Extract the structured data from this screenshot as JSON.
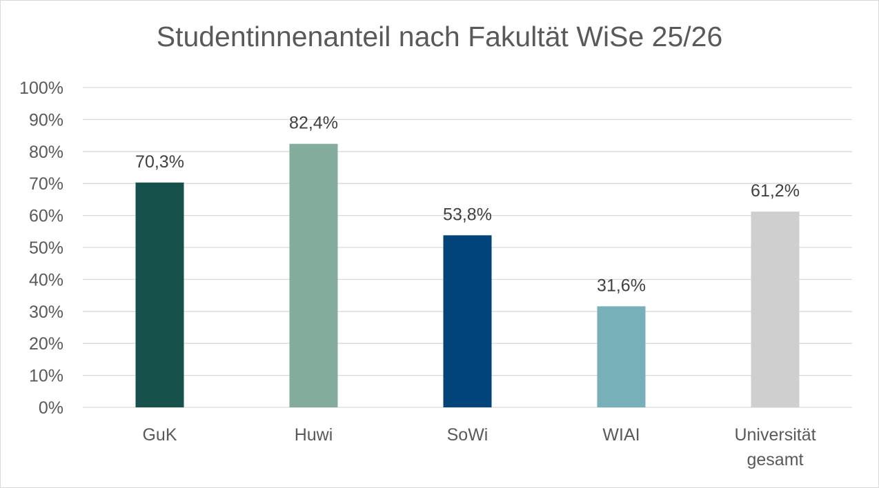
{
  "chart_data": {
    "type": "bar",
    "title": "Studentinnenanteil nach Fakultät WiSe 25/26",
    "categories": [
      [
        "GuK"
      ],
      [
        "Huwi"
      ],
      [
        "SoWi"
      ],
      [
        "WIAI"
      ],
      [
        "Universität",
        "gesamt"
      ]
    ],
    "values": [
      70.3,
      82.4,
      53.8,
      31.6,
      61.2
    ],
    "data_labels": [
      "70,3%",
      "82,4%",
      "53,8%",
      "31,6%",
      "61,2%"
    ],
    "colors": [
      "#17514c",
      "#84ac9c",
      "#004479",
      "#78b0ba",
      "#cfcfcf"
    ],
    "ylim": [
      0,
      100
    ],
    "y_ticks": [
      0,
      10,
      20,
      30,
      40,
      50,
      60,
      70,
      80,
      90,
      100
    ],
    "y_tick_labels": [
      "0%",
      "10%",
      "20%",
      "30%",
      "40%",
      "50%",
      "60%",
      "70%",
      "80%",
      "90%",
      "100%"
    ],
    "grid": true,
    "legend": "none",
    "xlabel": "",
    "ylabel": ""
  }
}
